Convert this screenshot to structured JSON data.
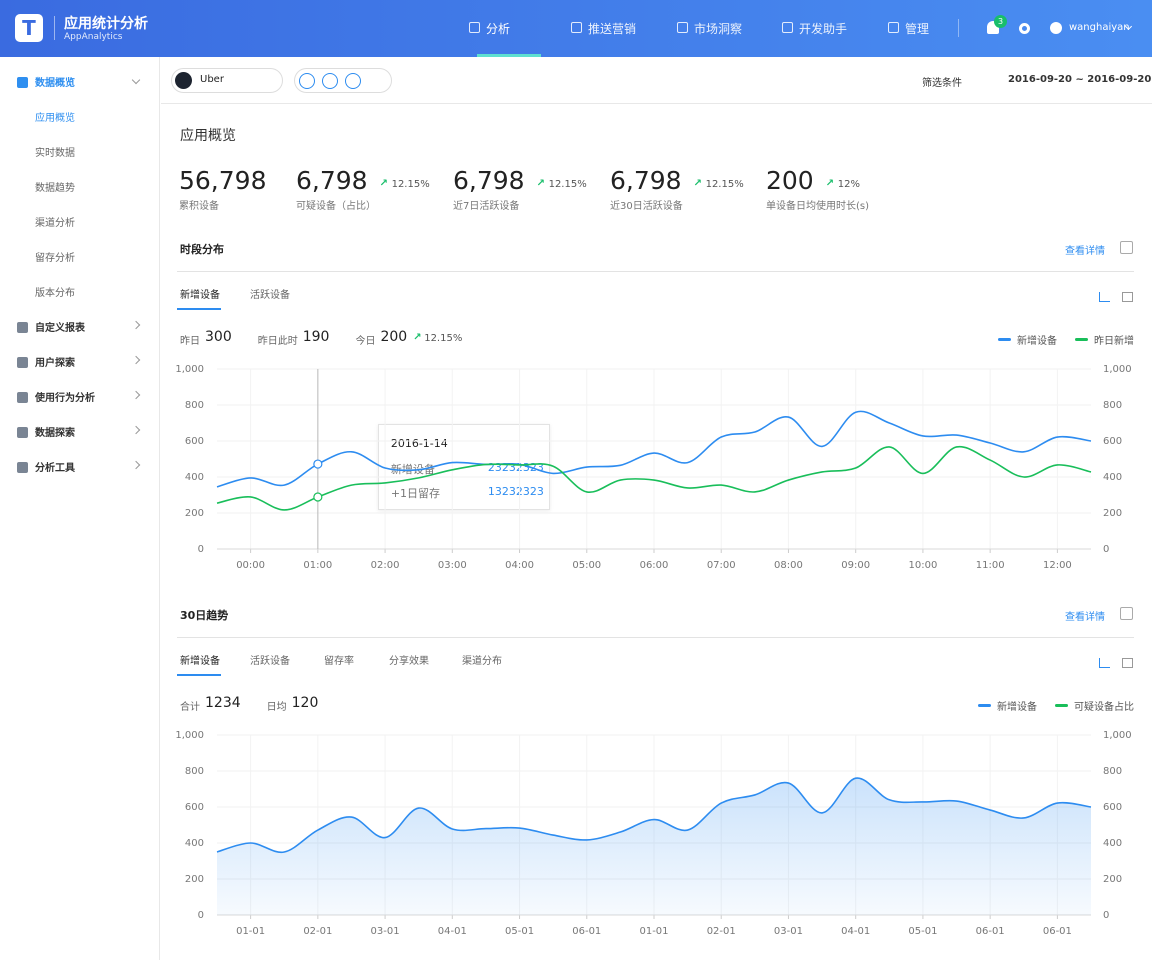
{
  "header": {
    "title": "应用统计分析",
    "subtitle": "AppAnalytics",
    "nav": [
      "分析",
      "推送营销",
      "市场洞察",
      "开发助手",
      "管理"
    ],
    "notifications": 3,
    "user": "wanghaiyan"
  },
  "sidebar": [
    {
      "label": "数据概览",
      "children": [
        "应用概览",
        "实时数据",
        "数据趋势",
        "渠道分析",
        "留存分析",
        "版本分布"
      ]
    },
    {
      "label": "自定义报表"
    },
    {
      "label": "用户探索"
    },
    {
      "label": "使用行为分析"
    },
    {
      "label": "数据探索"
    },
    {
      "label": "分析工具"
    }
  ],
  "toolbar": {
    "app": "Uber",
    "filter": "筛选条件",
    "date_range": "2016-09-20 ~ 2016-09-20"
  },
  "overview": {
    "title": "应用概览",
    "kpis": [
      {
        "value": "56,798",
        "label": "累积设备"
      },
      {
        "value": "6,798",
        "change": "12.15%",
        "label": "可疑设备（占比）"
      },
      {
        "value": "6,798",
        "change": "12.15%",
        "label": "近7日活跃设备"
      },
      {
        "value": "6,798",
        "change": "12.15%",
        "label": "近30日活跃设备"
      },
      {
        "value": "200",
        "change": "12%",
        "label": "单设备日均使用时长(s)"
      }
    ]
  },
  "chart_data": [
    {
      "type": "line",
      "title": "时段分布",
      "link": "查看详情",
      "tabs": [
        "新增设备",
        "活跃设备"
      ],
      "stats": [
        {
          "label": "昨日",
          "value": 300
        },
        {
          "label": "昨日此时",
          "value": 190
        },
        {
          "label": "今日",
          "value": 200,
          "change": "12.15%"
        }
      ],
      "x": [
        -0.5,
        0,
        0.5,
        1,
        1.5,
        2,
        2.5,
        3,
        3.5,
        4,
        4.5,
        5,
        5.5,
        6,
        6.5,
        7,
        7.5,
        8,
        8.5,
        9,
        9.5,
        10,
        10.5,
        11,
        11.5,
        12,
        12.5
      ],
      "xlim": [
        -0.5,
        12.5
      ],
      "xticks": [
        {
          "value": 0,
          "label": "00:00"
        },
        {
          "value": 1,
          "label": "01:00"
        },
        {
          "value": 2,
          "label": "02:00"
        },
        {
          "value": 3,
          "label": "03:00"
        },
        {
          "value": 4,
          "label": "04:00"
        },
        {
          "value": 5,
          "label": "05:00"
        },
        {
          "value": 6,
          "label": "06:00"
        },
        {
          "value": 7,
          "label": "07:00"
        },
        {
          "value": 8,
          "label": "08:00"
        },
        {
          "value": 9,
          "label": "09:00"
        },
        {
          "value": 10,
          "label": "10:00"
        },
        {
          "value": 11,
          "label": "11:00"
        },
        {
          "value": 12,
          "label": "12:00"
        }
      ],
      "ylim": [
        0,
        1000
      ],
      "yticks": [
        0,
        200,
        400,
        600,
        800,
        {
          "value": 1000,
          "label": "1,000"
        }
      ],
      "y2lim": [
        0,
        1000
      ],
      "y2ticks": [
        0,
        200,
        400,
        600,
        800,
        {
          "value": 1000,
          "label": "1,000"
        }
      ],
      "grid": true,
      "series": [
        {
          "name": "新增设备",
          "color": "#2d8cf0",
          "values": [
            345,
            395,
            355,
            472,
            540,
            450,
            440,
            480,
            470,
            470,
            420,
            455,
            465,
            533,
            480,
            622,
            650,
            733,
            570,
            760,
            700,
            628,
            633,
            589,
            540,
            622,
            600
          ]
        },
        {
          "name": "昨日新增",
          "color": "#19be5a",
          "values": [
            255,
            289,
            217,
            289,
            355,
            367,
            395,
            440,
            470,
            467,
            460,
            317,
            383,
            383,
            339,
            355,
            317,
            383,
            428,
            450,
            567,
            420,
            567,
            494,
            400,
            467,
            428
          ]
        }
      ],
      "tooltip": {
        "title": "2016-1-14",
        "x": 1,
        "rows": [
          {
            "label": "新增设备",
            "value": 23232323
          },
          {
            "label": "+1日留存",
            "value": 13232323
          }
        ]
      }
    },
    {
      "type": "area",
      "title": "30日趋势",
      "link": "查看详情",
      "tabs": [
        "新增设备",
        "活跃设备",
        "留存率",
        "分享效果",
        "渠道分布"
      ],
      "stats": [
        {
          "label": "合计",
          "value": 1234
        },
        {
          "label": "日均",
          "value": 120
        }
      ],
      "x": [
        -0.5,
        0,
        0.5,
        1,
        1.5,
        2,
        2.5,
        3,
        3.5,
        4,
        4.5,
        5,
        5.5,
        6,
        6.5,
        7,
        7.5,
        8,
        8.5,
        9,
        9.5,
        10,
        10.5,
        11,
        11.5,
        12,
        12.5
      ],
      "xlim": [
        -0.5,
        12.5
      ],
      "xticks": [
        {
          "value": 0,
          "label": "01-01"
        },
        {
          "value": 1,
          "label": "02-01"
        },
        {
          "value": 2,
          "label": "03-01"
        },
        {
          "value": 3,
          "label": "04-01"
        },
        {
          "value": 4,
          "label": "05-01"
        },
        {
          "value": 5,
          "label": "06-01"
        },
        {
          "value": 6,
          "label": "01-01"
        },
        {
          "value": 7,
          "label": "02-01"
        },
        {
          "value": 8,
          "label": "03-01"
        },
        {
          "value": 9,
          "label": "04-01"
        },
        {
          "value": 10,
          "label": "05-01"
        },
        {
          "value": 11,
          "label": "06-01"
        },
        {
          "value": 12,
          "label": "06-01"
        }
      ],
      "ylim": [
        0,
        1000
      ],
      "yticks": [
        0,
        200,
        400,
        600,
        800,
        {
          "value": 1000,
          "label": "1,000"
        }
      ],
      "y2lim": [
        0,
        1000
      ],
      "y2ticks": [
        0,
        200,
        400,
        600,
        800,
        {
          "value": 1000,
          "label": "1,000"
        }
      ],
      "grid": true,
      "series": [
        {
          "name": "新增设备",
          "color": "#2d8cf0",
          "values": [
            350,
            400,
            350,
            472,
            544,
            430,
            594,
            478,
            480,
            483,
            444,
            417,
            461,
            530,
            472,
            622,
            667,
            733,
            567,
            760,
            640,
            628,
            633,
            583,
            539,
            622,
            600
          ]
        },
        {
          "name": "可疑设备占比",
          "color": "#19be5a",
          "values": [
            null,
            null,
            null,
            null,
            null,
            null,
            null,
            null,
            null,
            null,
            null,
            null,
            null,
            null,
            null,
            null,
            null,
            null,
            null,
            null,
            null,
            null,
            null,
            null,
            null,
            null,
            null
          ]
        }
      ]
    }
  ]
}
